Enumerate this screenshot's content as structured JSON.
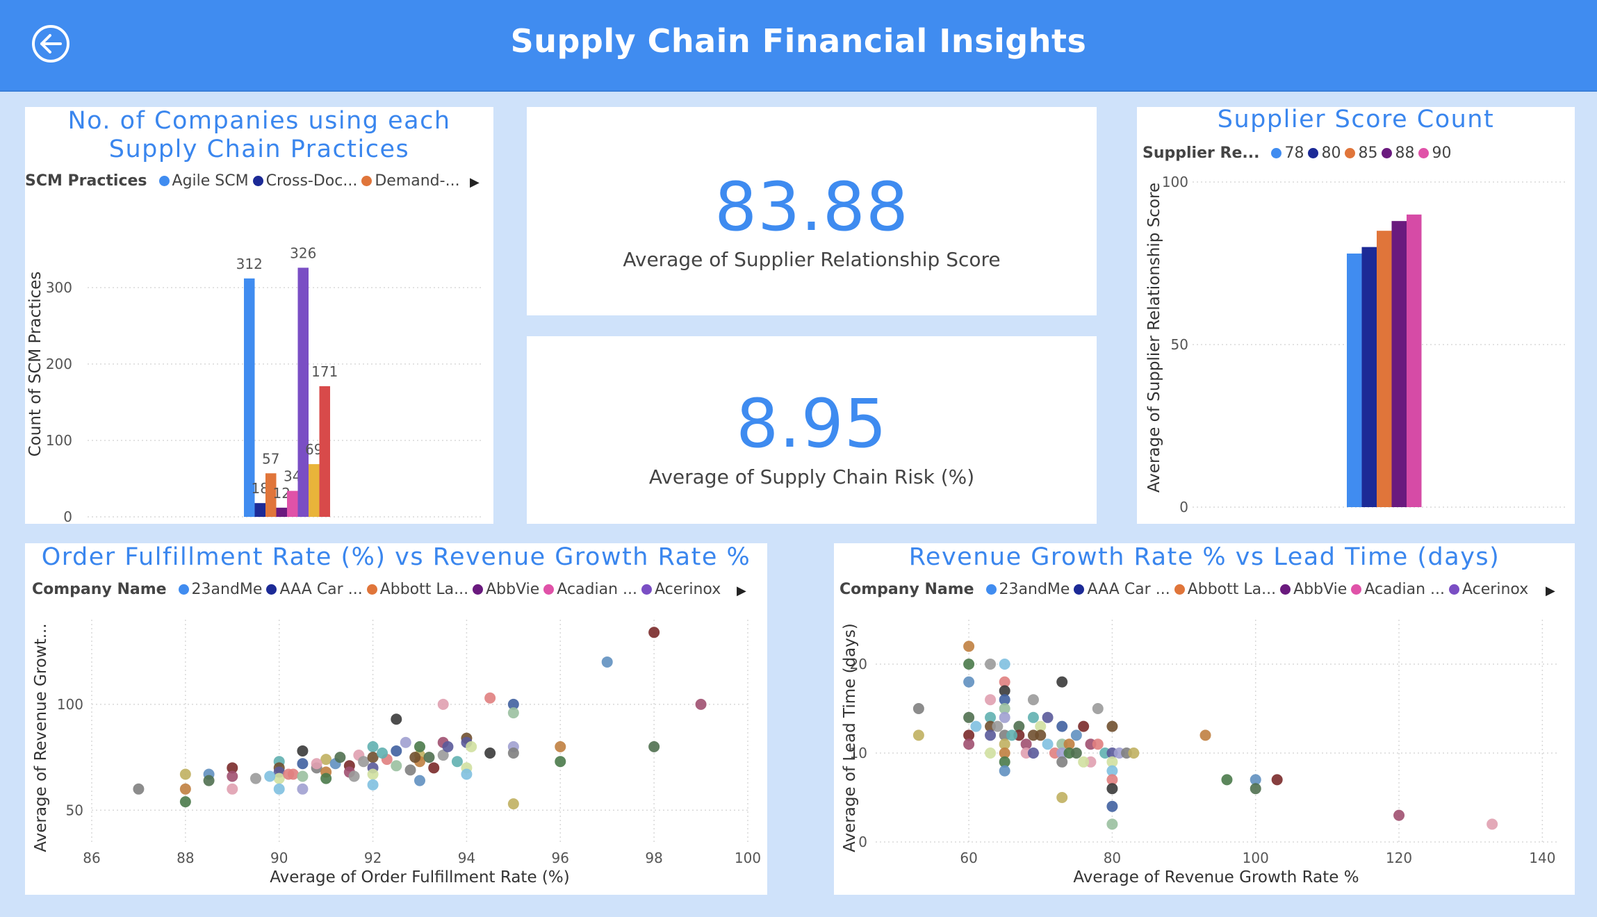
{
  "header": {
    "title": "Supply Chain Financial Insights",
    "back_icon": "back-arrow-icon"
  },
  "scm_chart": {
    "title_line1": "No. of Companies using each",
    "title_line2": "Supply Chain Practices",
    "legend_label": "SCM Practices",
    "legend_items": [
      {
        "label": "Agile SCM",
        "color": "#408cf0"
      },
      {
        "label": "Cross-Doc...",
        "color": "#1c2a96"
      },
      {
        "label": "Demand-...",
        "color": "#e0753a"
      }
    ],
    "chart_data": {
      "type": "bar",
      "categories": [
        "Agile SCM",
        "Cross-Docking",
        "Demand-Driven",
        "",
        "",
        "",
        "",
        ""
      ],
      "values": [
        312,
        18,
        57,
        12,
        34,
        326,
        69,
        171
      ],
      "colors": [
        "#408cf0",
        "#1c2a96",
        "#e0753a",
        "#6a1a7e",
        "#e052a8",
        "#7a4ec4",
        "#e9b43a",
        "#d84a4a"
      ],
      "ylabel": "Count of SCM Practices",
      "ylim": [
        0,
        400
      ],
      "yticks": [
        0,
        100,
        200,
        300
      ],
      "grid": true
    }
  },
  "kpi1": {
    "value": "83.88",
    "label": "Average of Supplier Relationship Score"
  },
  "kpi2": {
    "value": "8.95",
    "label": "Average of Supply Chain Risk (%)"
  },
  "supplier_chart": {
    "title": "Supplier Score Count",
    "legend_label": "Supplier Re...",
    "legend_items": [
      {
        "label": "78",
        "color": "#408cf0"
      },
      {
        "label": "80",
        "color": "#1c2a96"
      },
      {
        "label": "85",
        "color": "#e0753a"
      },
      {
        "label": "88",
        "color": "#6a1a7e"
      },
      {
        "label": "90",
        "color": "#e052a8"
      }
    ],
    "chart_data": {
      "type": "bar",
      "categories": [
        "78",
        "80",
        "85",
        "88",
        "90"
      ],
      "values": [
        78,
        80,
        85,
        88,
        90
      ],
      "colors": [
        "#408cf0",
        "#1c2a96",
        "#e0753a",
        "#6a1a7e",
        "#d64ba6"
      ],
      "ylabel": "Average of Supplier Relationship Score",
      "ylim": [
        0,
        100
      ],
      "yticks": [
        0,
        50,
        100
      ],
      "grid": true
    }
  },
  "scatter1": {
    "title": "Order Fulfillment Rate (%) vs Revenue Growth Rate %",
    "legend_label": "Company Name",
    "legend_items": [
      {
        "label": "23andMe",
        "color": "#408cf0"
      },
      {
        "label": "AAA Car ...",
        "color": "#1c2a96"
      },
      {
        "label": "Abbott La...",
        "color": "#e0753a"
      },
      {
        "label": "AbbVie",
        "color": "#6a1a7e"
      },
      {
        "label": "Acadian ...",
        "color": "#e052a8"
      },
      {
        "label": "Acerinox",
        "color": "#7a4ec4"
      }
    ],
    "chart_data": {
      "type": "scatter",
      "xlabel": "Average of Order Fulfillment Rate (%)",
      "ylabel": "Average of Revenue Growt...",
      "xlim": [
        86,
        100
      ],
      "ylim": [
        35,
        140
      ],
      "xticks": [
        86,
        88,
        90,
        92,
        94,
        96,
        98,
        100
      ],
      "yticks": [
        50,
        100
      ],
      "grid": true,
      "points": [
        [
          87,
          60
        ],
        [
          88,
          67
        ],
        [
          88,
          60
        ],
        [
          88,
          54
        ],
        [
          88.5,
          67
        ],
        [
          88.5,
          64
        ],
        [
          89,
          70
        ],
        [
          89,
          66
        ],
        [
          89,
          60
        ],
        [
          89.5,
          65
        ],
        [
          90,
          73
        ],
        [
          90,
          70
        ],
        [
          90,
          68
        ],
        [
          90,
          65
        ],
        [
          90,
          60
        ],
        [
          90.3,
          67
        ],
        [
          90.5,
          78
        ],
        [
          90.5,
          72
        ],
        [
          90.5,
          66
        ],
        [
          90.5,
          60
        ],
        [
          90.8,
          70
        ],
        [
          91,
          74
        ],
        [
          91,
          68
        ],
        [
          91,
          65
        ],
        [
          91.2,
          72
        ],
        [
          91.3,
          75
        ],
        [
          91.5,
          71
        ],
        [
          91.5,
          68
        ],
        [
          91.7,
          76
        ],
        [
          91.8,
          73
        ],
        [
          92,
          80
        ],
        [
          92,
          75
        ],
        [
          92,
          70
        ],
        [
          92,
          67
        ],
        [
          92,
          62
        ],
        [
          92.3,
          74
        ],
        [
          92.5,
          93
        ],
        [
          92.5,
          78
        ],
        [
          92.5,
          71
        ],
        [
          92.7,
          82
        ],
        [
          92.8,
          69
        ],
        [
          93,
          76
        ],
        [
          93,
          73
        ],
        [
          93,
          80
        ],
        [
          93,
          64
        ],
        [
          93.2,
          75
        ],
        [
          93.3,
          70
        ],
        [
          93.5,
          82
        ],
        [
          93.5,
          100
        ],
        [
          93.5,
          76
        ],
        [
          93.8,
          73
        ],
        [
          94,
          84
        ],
        [
          94,
          82
        ],
        [
          94,
          70
        ],
        [
          94,
          67
        ],
        [
          94.5,
          103
        ],
        [
          94.5,
          77
        ],
        [
          95,
          100
        ],
        [
          95,
          96
        ],
        [
          95,
          80
        ],
        [
          95,
          77
        ],
        [
          95,
          53
        ],
        [
          96,
          80
        ],
        [
          96,
          73
        ],
        [
          97,
          120
        ],
        [
          98,
          80
        ],
        [
          98,
          134
        ],
        [
          99,
          100
        ],
        [
          90.8,
          72
        ],
        [
          91.6,
          66
        ],
        [
          92.2,
          77
        ],
        [
          92.9,
          75
        ],
        [
          93.6,
          80
        ],
        [
          94.1,
          80
        ],
        [
          89.8,
          66
        ],
        [
          90.2,
          67
        ]
      ]
    }
  },
  "scatter2": {
    "title": "Revenue Growth Rate % vs Lead Time (days)",
    "legend_label": "Company Name",
    "legend_items": [
      {
        "label": "23andMe",
        "color": "#408cf0"
      },
      {
        "label": "AAA Car ...",
        "color": "#1c2a96"
      },
      {
        "label": "Abbott La...",
        "color": "#e0753a"
      },
      {
        "label": "AbbVie",
        "color": "#6a1a7e"
      },
      {
        "label": "Acadian ...",
        "color": "#e052a8"
      },
      {
        "label": "Acerinox",
        "color": "#7a4ec4"
      }
    ],
    "chart_data": {
      "type": "scatter",
      "xlabel": "Average of Revenue Growth Rate %",
      "ylabel": "Average of Lead Time (days)",
      "xlim": [
        47,
        142
      ],
      "ylim": [
        0,
        25
      ],
      "xticks": [
        60,
        80,
        100,
        120,
        140
      ],
      "yticks": [
        0,
        10,
        20
      ],
      "grid": true,
      "points": [
        [
          53,
          15
        ],
        [
          53,
          12
        ],
        [
          60,
          22
        ],
        [
          60,
          20
        ],
        [
          60,
          18
        ],
        [
          60,
          14
        ],
        [
          60,
          12
        ],
        [
          60,
          11
        ],
        [
          63,
          16
        ],
        [
          63,
          20
        ],
        [
          63,
          14
        ],
        [
          63,
          13
        ],
        [
          63,
          12
        ],
        [
          63,
          10
        ],
        [
          65,
          20
        ],
        [
          65,
          18
        ],
        [
          65,
          17
        ],
        [
          65,
          16
        ],
        [
          65,
          15
        ],
        [
          65,
          14
        ],
        [
          65,
          12
        ],
        [
          65,
          11
        ],
        [
          65,
          10
        ],
        [
          65,
          9
        ],
        [
          65,
          8
        ],
        [
          67,
          13
        ],
        [
          67,
          12
        ],
        [
          68,
          11
        ],
        [
          68,
          10
        ],
        [
          69,
          16
        ],
        [
          69,
          14
        ],
        [
          69,
          12
        ],
        [
          69,
          10
        ],
        [
          70,
          13
        ],
        [
          71,
          11
        ],
        [
          72,
          10
        ],
        [
          73,
          18
        ],
        [
          73,
          13
        ],
        [
          73,
          11
        ],
        [
          73,
          10
        ],
        [
          73,
          9
        ],
        [
          73,
          5
        ],
        [
          74,
          11
        ],
        [
          74,
          10
        ],
        [
          75,
          12
        ],
        [
          75,
          10
        ],
        [
          76,
          13
        ],
        [
          77,
          11
        ],
        [
          77,
          9
        ],
        [
          78,
          15
        ],
        [
          79,
          10
        ],
        [
          80,
          13
        ],
        [
          80,
          10
        ],
        [
          80,
          9
        ],
        [
          80,
          8
        ],
        [
          80,
          7
        ],
        [
          80,
          6
        ],
        [
          80,
          4
        ],
        [
          80,
          2
        ],
        [
          81,
          10
        ],
        [
          82,
          10
        ],
        [
          83,
          10
        ],
        [
          93,
          12
        ],
        [
          96,
          7
        ],
        [
          100,
          7
        ],
        [
          100,
          6
        ],
        [
          103,
          7
        ],
        [
          120,
          3
        ],
        [
          133,
          2
        ],
        [
          64,
          13
        ],
        [
          66,
          12
        ],
        [
          70,
          12
        ],
        [
          71,
          14
        ],
        [
          76,
          9
        ],
        [
          61,
          13
        ],
        [
          78,
          11
        ]
      ]
    }
  },
  "palette": [
    "#808080",
    "#4a7a4a",
    "#7a2a2a",
    "#9a9a9a",
    "#5a5a9a",
    "#e08080",
    "#9ac0a0",
    "#c0b060",
    "#6090c0",
    "#a05070",
    "#60b0b0",
    "#d0e0a0",
    "#3a3a3a",
    "#a0a0d0",
    "#c08040",
    "#507050",
    "#e0a0b0",
    "#705030",
    "#80c0e0",
    "#4060a0"
  ]
}
